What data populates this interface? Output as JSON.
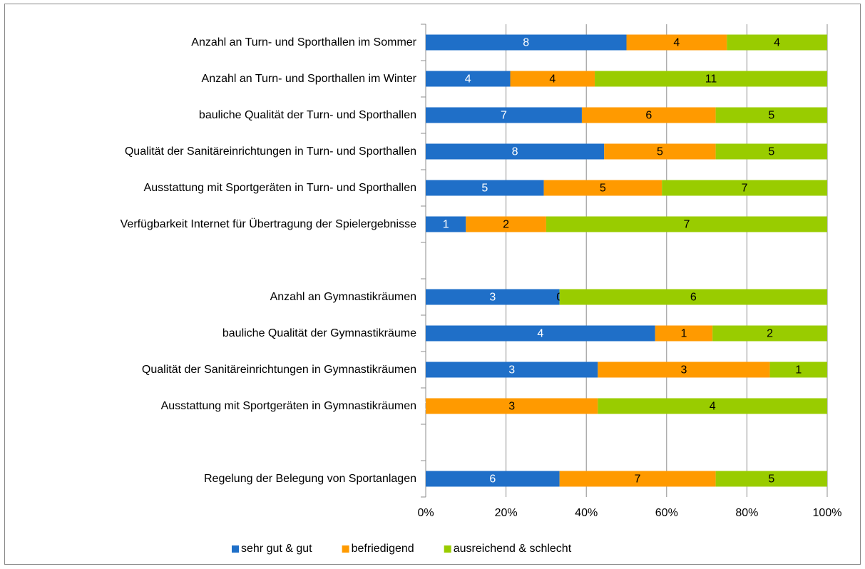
{
  "chart_data": {
    "type": "bar",
    "orientation": "horizontal",
    "stacked": "percent",
    "categories": [
      "Anzahl an Turn- und Sporthallen im Sommer",
      "Anzahl an Turn- und Sporthallen im Winter",
      "bauliche Qualität der Turn- und Sporthallen",
      "Qualität der Sanitäreinrichtungen in Turn- und Sporthallen",
      "Ausstattung mit Sportgeräten in Turn- und Sporthallen",
      "Verfügbarkeit Internet für Übertragung der Spielergebnisse",
      null,
      "Anzahl an Gymnastikräumen",
      "bauliche Qualität der Gymnastikräume",
      "Qualität der Sanitäreinrichtungen in Gymnastikräumen",
      "Ausstattung mit Sportgeräten in Gymnastikräumen",
      null,
      "Regelung der Belegung von Sportanlagen"
    ],
    "series": [
      {
        "name": "sehr gut & gut",
        "color": "#1f6fc8",
        "values": [
          8,
          4,
          7,
          8,
          5,
          1,
          null,
          3,
          4,
          3,
          0,
          null,
          6
        ]
      },
      {
        "name": "befriedigend",
        "color": "#ff9a00",
        "values": [
          4,
          4,
          6,
          5,
          5,
          2,
          null,
          0,
          1,
          3,
          3,
          null,
          7
        ]
      },
      {
        "name": "ausreichend & schlecht",
        "color": "#99cc00",
        "values": [
          4,
          11,
          5,
          5,
          7,
          7,
          null,
          6,
          2,
          1,
          4,
          null,
          5
        ]
      }
    ],
    "xlim": [
      0,
      100
    ],
    "xticks": [
      {
        "value": 0,
        "label": "0%"
      },
      {
        "value": 20,
        "label": "20%"
      },
      {
        "value": 40,
        "label": "40%"
      },
      {
        "value": 60,
        "label": "60%"
      },
      {
        "value": 80,
        "label": "80%"
      },
      {
        "value": 100,
        "label": "100%"
      }
    ],
    "grid": true,
    "legend": "bottom"
  }
}
